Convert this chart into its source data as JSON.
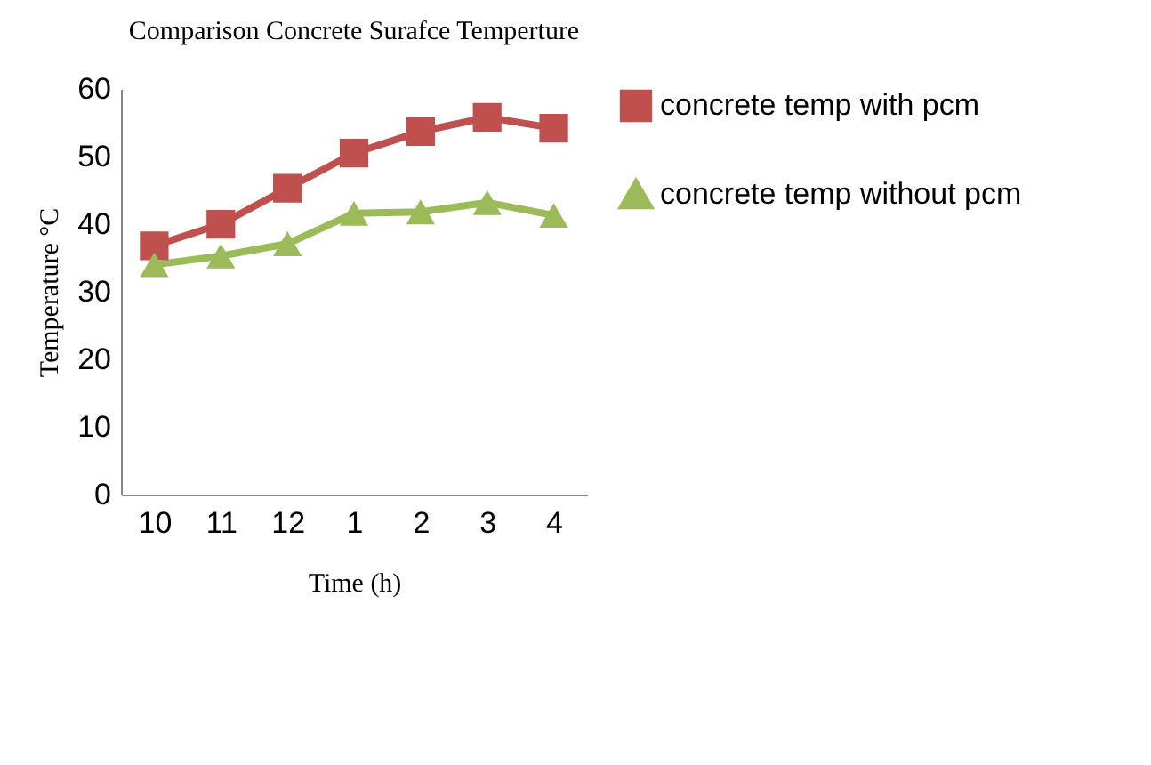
{
  "chart_data": {
    "type": "line",
    "title": "Comparison Concrete Surafce Temperture",
    "xlabel": "Time (h)",
    "ylabel": "Temperature °C",
    "categories": [
      "10",
      "11",
      "12",
      "1",
      "2",
      "3",
      "4"
    ],
    "series": [
      {
        "name": "concrete temp with pcm",
        "color": "#c0504d",
        "marker": "square",
        "values": [
          36.8,
          40,
          45.3,
          50.5,
          53.7,
          55.8,
          54.2
        ]
      },
      {
        "name": "concrete temp without pcm",
        "color": "#9bbb59",
        "marker": "triangle",
        "values": [
          34,
          35.3,
          37.1,
          41.6,
          41.8,
          43.2,
          41.3
        ]
      }
    ],
    "ylim": [
      0,
      60
    ],
    "yticks": [
      0,
      10,
      20,
      30,
      40,
      50,
      60
    ],
    "grid": false,
    "legend": "right"
  }
}
